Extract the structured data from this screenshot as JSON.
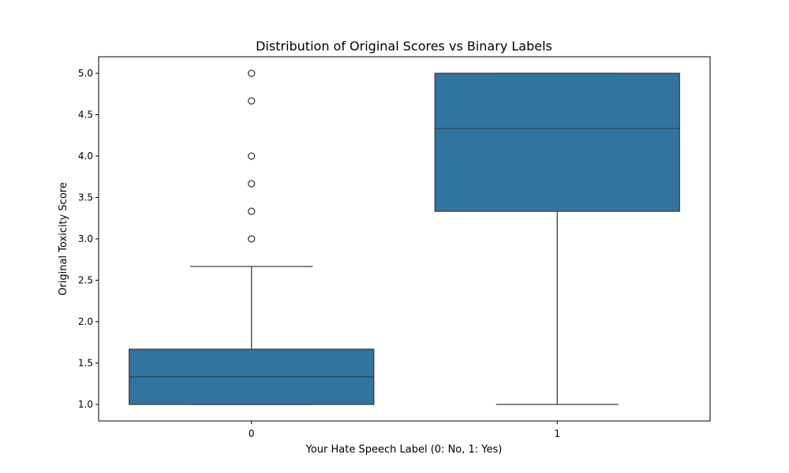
{
  "chart_data": {
    "type": "box",
    "title": "Distribution of Original Scores vs Binary Labels",
    "xlabel": "Your Hate Speech Label (0: No, 1: Yes)",
    "ylabel": "Original Toxicity Score",
    "ylim": [
      0.8,
      5.2
    ],
    "yticks": [
      "1.0",
      "1.5",
      "2.0",
      "2.5",
      "3.0",
      "3.5",
      "4.0",
      "4.5",
      "5.0"
    ],
    "categories": [
      "0",
      "1"
    ],
    "boxes": [
      {
        "category": "0",
        "whisker_low": 1.0,
        "q1": 1.0,
        "median": 1.333,
        "q3": 1.667,
        "whisker_high": 2.667,
        "outliers": [
          3.0,
          3.333,
          3.667,
          4.0,
          4.667,
          5.0
        ]
      },
      {
        "category": "1",
        "whisker_low": 1.0,
        "q1": 3.333,
        "median": 4.333,
        "q3": 5.0,
        "whisker_high": 5.0,
        "outliers": []
      }
    ],
    "box_color": "#3274a1",
    "line_color": "#3d3d3d",
    "grid": false,
    "legend": "none"
  }
}
